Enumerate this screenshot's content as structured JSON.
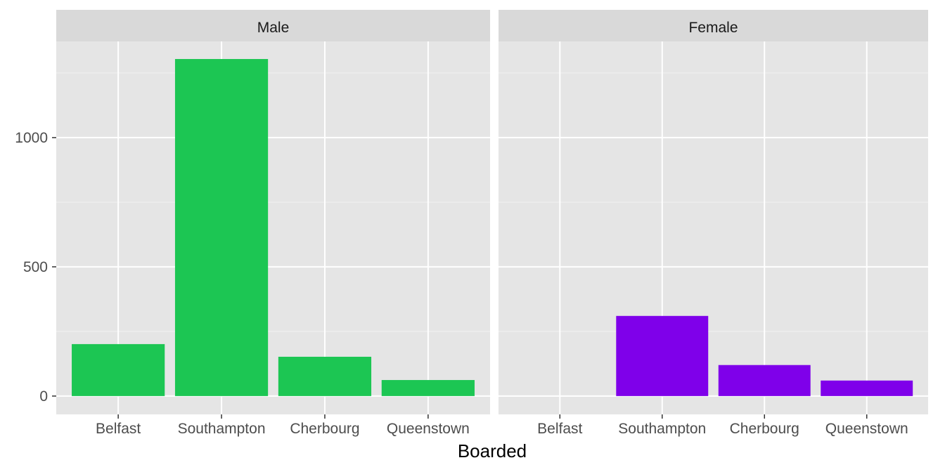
{
  "chart_data": {
    "type": "bar",
    "xlabel": "Boarded",
    "ylabel": "",
    "categories": [
      "Belfast",
      "Southampton",
      "Cherbourg",
      "Queenstown"
    ],
    "ylim": [
      -71,
      1372
    ],
    "yticks": [
      0,
      500,
      1000
    ],
    "grid": true,
    "legend": "none",
    "facets": [
      {
        "label": "Male",
        "color": "#1CC653",
        "values": [
          201,
          1304,
          152,
          62
        ]
      },
      {
        "label": "Female",
        "color": "#7F00EA",
        "values": [
          0,
          310,
          120,
          60
        ]
      }
    ]
  }
}
